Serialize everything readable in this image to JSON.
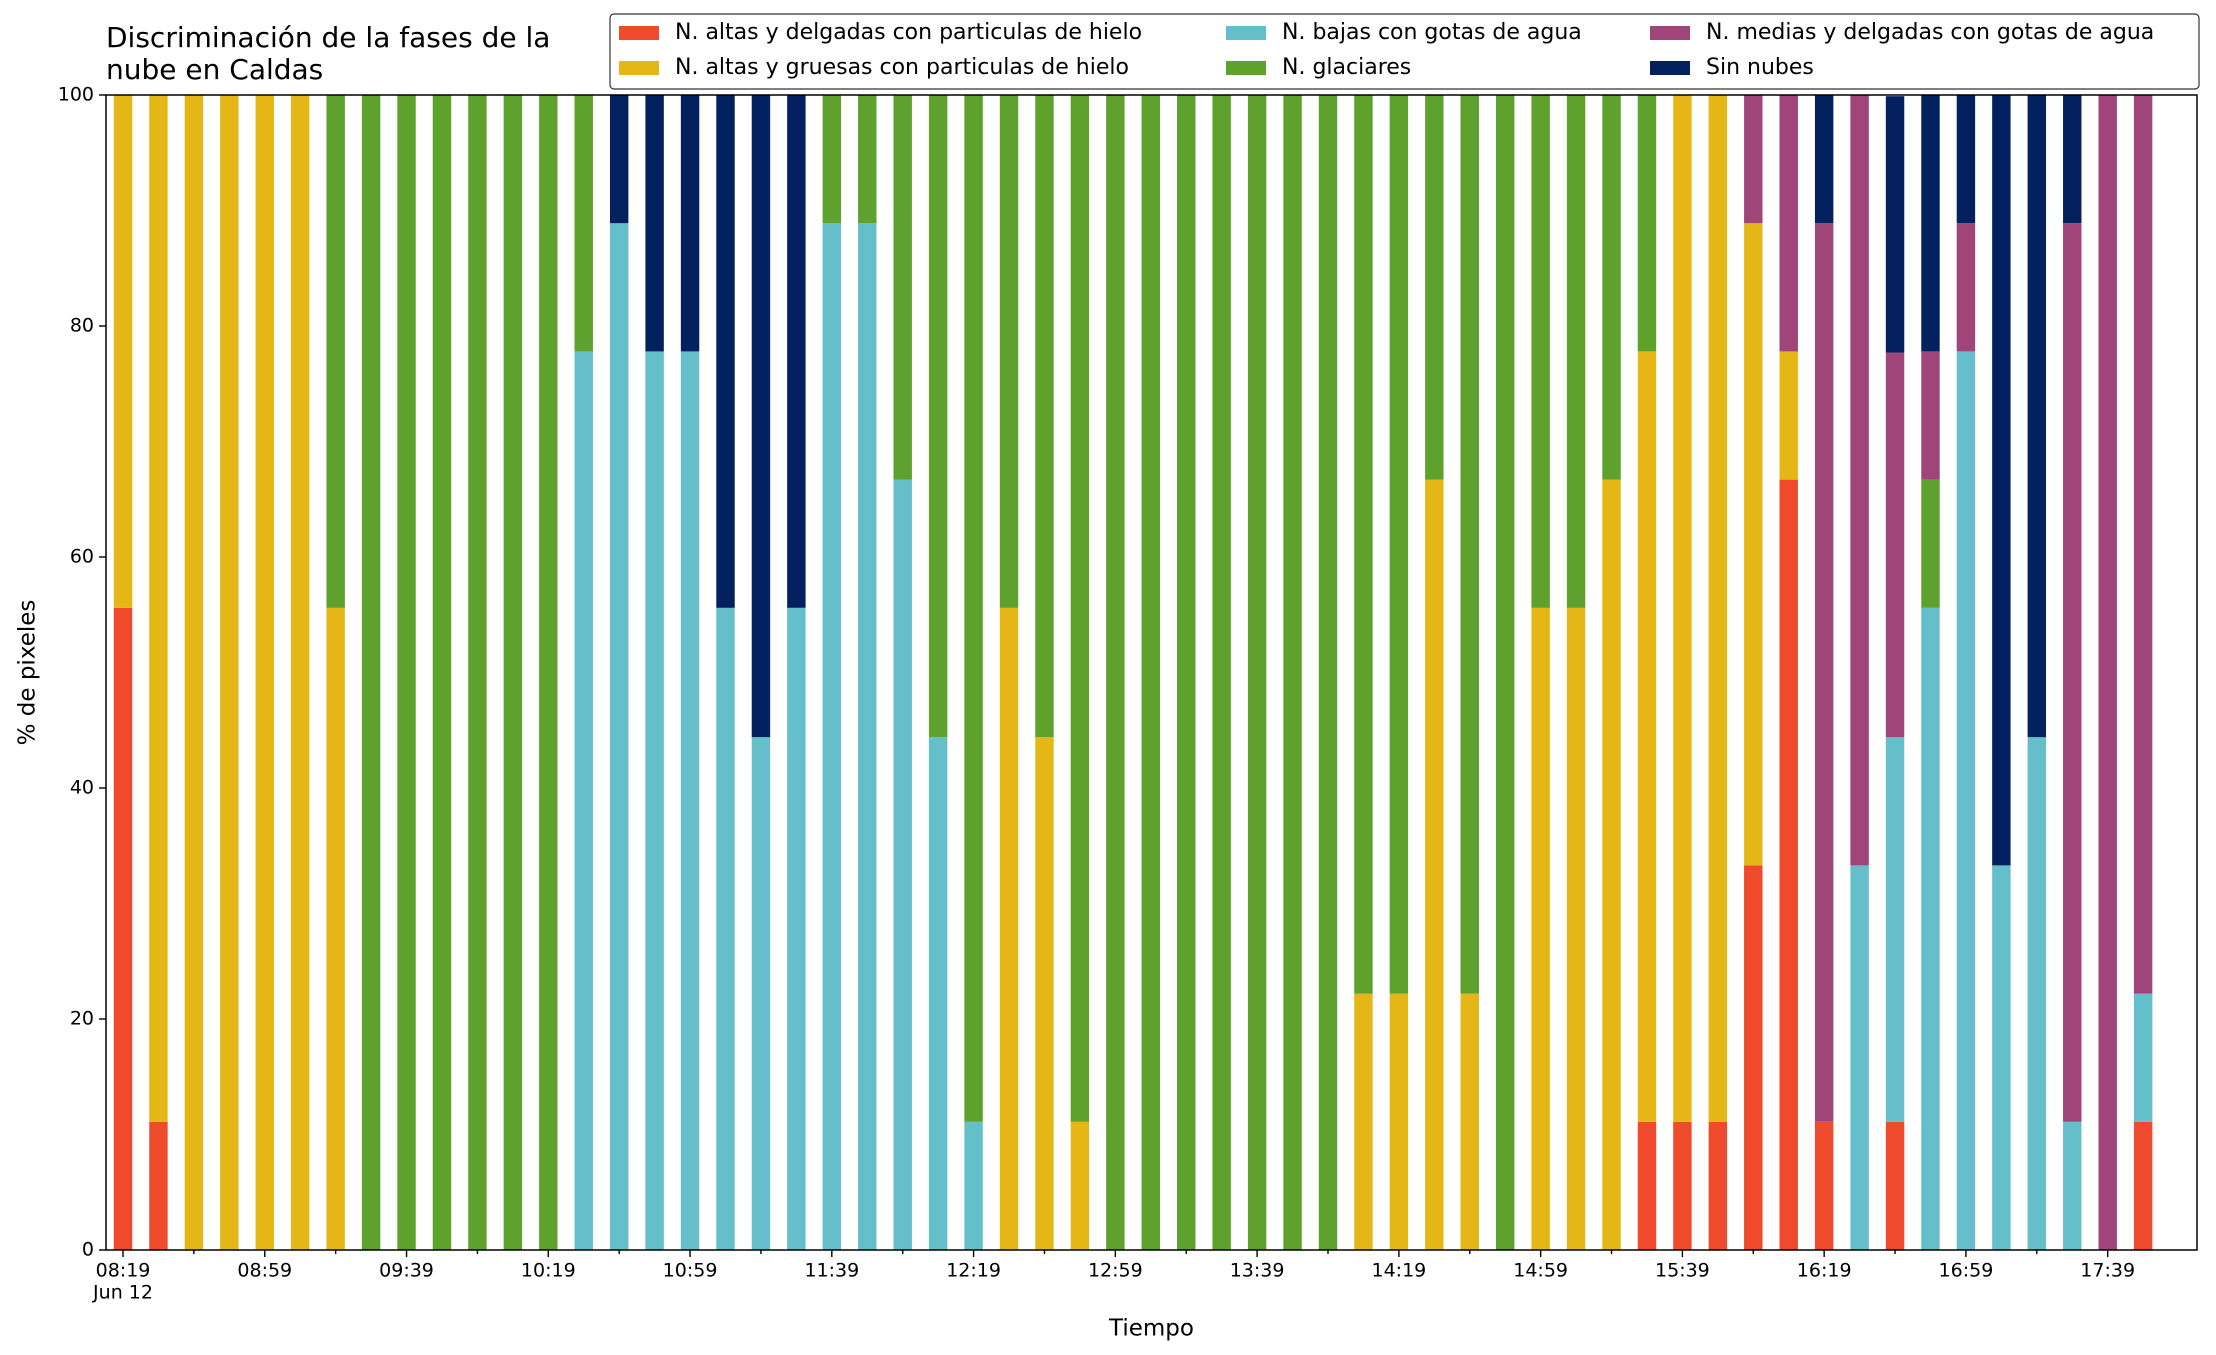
{
  "chart_data": {
    "type": "stacked_bar",
    "title": "Discriminación de la fases de la\nnube en Caldas",
    "xlabel": "Tiempo",
    "ylabel": "% de pixeles",
    "x_date_label": "Jun 12",
    "categories": [
      "08:19",
      null,
      null,
      null,
      "08:59",
      null,
      null,
      null,
      "09:39",
      null,
      null,
      null,
      "10:19",
      null,
      null,
      null,
      "10:59",
      null,
      null,
      null,
      "11:39",
      null,
      null,
      null,
      "12:19",
      null,
      null,
      null,
      "12:59",
      null,
      null,
      null,
      "13:39",
      null,
      null,
      null,
      "14:19",
      null,
      null,
      null,
      "14:59",
      null,
      null,
      null,
      "15:39",
      null,
      null,
      null,
      "16:19",
      null,
      null,
      null,
      "16:59",
      null,
      null,
      null,
      "17:39",
      null
    ],
    "ylim": [
      0,
      100
    ],
    "yticks": [
      0,
      20,
      40,
      60,
      80,
      100
    ],
    "legend": "upper right",
    "series": [
      {
        "name": "N. altas y delgadas con particulas de hielo",
        "color": "#ee4a2b",
        "values": [
          55.6,
          11.1,
          0,
          0,
          0,
          0,
          0,
          0,
          0,
          0,
          0,
          0,
          0,
          0,
          0,
          0,
          0,
          0,
          0,
          0,
          0,
          0,
          0,
          0,
          0,
          0,
          0,
          0,
          0,
          0,
          0,
          0,
          0,
          0,
          0,
          0,
          0,
          0,
          0,
          0,
          0,
          0,
          0,
          11.1,
          11.1,
          11.1,
          33.3,
          66.7,
          11.1,
          0,
          11.1,
          0,
          0,
          0,
          0,
          0,
          0,
          11.1
        ]
      },
      {
        "name": "N. altas y gruesas con particulas de hielo",
        "color": "#e5b716",
        "values": [
          44.4,
          88.9,
          100,
          100,
          100,
          100,
          55.6,
          0,
          0,
          0,
          0,
          0,
          0,
          0,
          0,
          0,
          0,
          0,
          0,
          0,
          0,
          0,
          0,
          0,
          0,
          55.6,
          44.4,
          11.1,
          0,
          0,
          0,
          0,
          0,
          0,
          0,
          22.2,
          22.2,
          66.7,
          22.2,
          0,
          55.6,
          55.6,
          66.7,
          66.7,
          88.9,
          88.9,
          55.6,
          11.1,
          0,
          0,
          0,
          0,
          0,
          0,
          0,
          0,
          0,
          0
        ]
      },
      {
        "name": "N. bajas con gotas de agua",
        "color": "#64bfcb",
        "values": [
          0,
          0,
          0,
          0,
          0,
          0,
          0,
          0,
          0,
          0,
          0,
          0,
          0,
          77.8,
          88.9,
          77.8,
          77.8,
          55.6,
          44.4,
          55.6,
          88.9,
          88.9,
          66.7,
          44.4,
          11.1,
          0,
          0,
          0,
          0,
          0,
          0,
          0,
          0,
          0,
          0,
          0,
          0,
          0,
          0,
          0,
          0,
          0,
          0,
          0,
          0,
          0,
          0,
          0,
          0,
          33.3,
          33.3,
          55.6,
          77.8,
          33.3,
          44.4,
          11.1,
          0,
          11.1
        ]
      },
      {
        "name": "N. glaciares",
        "color": "#5ea12c",
        "values": [
          0,
          0,
          0,
          0,
          0,
          0,
          44.4,
          100,
          100,
          100,
          100,
          100,
          100,
          22.2,
          0,
          0,
          0,
          0,
          0,
          0,
          11.1,
          11.1,
          33.3,
          55.6,
          88.9,
          44.4,
          55.6,
          88.9,
          100,
          100,
          100,
          100,
          100,
          100,
          100,
          77.8,
          77.8,
          33.3,
          77.8,
          100,
          44.4,
          44.4,
          33.3,
          22.2,
          0,
          0,
          0,
          0,
          0,
          0,
          0,
          11.1,
          0,
          0,
          0,
          0,
          0,
          0
        ]
      },
      {
        "name": "N. medias y delgadas con gotas de agua",
        "color": "#a0457a",
        "values": [
          0,
          0,
          0,
          0,
          0,
          0,
          0,
          0,
          0,
          0,
          0,
          0,
          0,
          0,
          0,
          0,
          0,
          0,
          0,
          0,
          0,
          0,
          0,
          0,
          0,
          0,
          0,
          0,
          0,
          0,
          0,
          0,
          0,
          0,
          0,
          0,
          0,
          0,
          0,
          0,
          0,
          0,
          0,
          0,
          0,
          0,
          11.1,
          22.2,
          77.8,
          66.7,
          33.3,
          11.1,
          11.1,
          0,
          0,
          77.8,
          100,
          77.8
        ]
      },
      {
        "name": "Sin nubes",
        "color": "#03215f",
        "values": [
          0,
          0,
          0,
          0,
          0,
          0,
          0,
          0,
          0,
          0,
          0,
          0,
          0,
          0,
          11.1,
          22.2,
          22.2,
          44.4,
          55.6,
          44.4,
          0,
          0,
          0,
          0,
          0,
          0,
          0,
          0,
          0,
          0,
          0,
          0,
          0,
          0,
          0,
          0,
          0,
          0,
          0,
          0,
          0,
          0,
          0,
          0,
          0,
          0,
          0,
          0,
          11.1,
          0,
          22.2,
          22.2,
          11.1,
          66.7,
          55.6,
          11.1,
          0,
          0
        ]
      }
    ]
  }
}
